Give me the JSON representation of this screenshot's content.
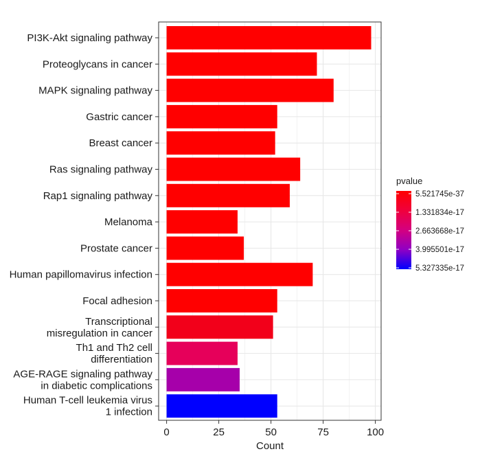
{
  "chart_data": {
    "type": "bar",
    "orientation": "horizontal",
    "xlabel": "Count",
    "xlim": [
      0,
      100
    ],
    "xticks": [
      "0",
      "25",
      "50",
      "75",
      "100"
    ],
    "grid": true,
    "legend": {
      "title": "pvalue",
      "position": "right",
      "labels": [
        "5.521745e-37",
        "1.331834e-17",
        "2.663668e-17",
        "3.995501e-17",
        "5.327335e-17"
      ],
      "color_low": "#ff0000",
      "color_high": "#0000ff"
    },
    "categories": [
      [
        "PI3K-Akt signaling pathway"
      ],
      [
        "Proteoglycans in cancer"
      ],
      [
        "MAPK signaling pathway"
      ],
      [
        "Gastric cancer"
      ],
      [
        "Breast cancer"
      ],
      [
        "Ras signaling pathway"
      ],
      [
        "Rap1 signaling pathway"
      ],
      [
        "Melanoma"
      ],
      [
        "Prostate cancer"
      ],
      [
        "Human papillomavirus infection"
      ],
      [
        "Focal adhesion"
      ],
      [
        "Transcriptional",
        "misregulation in cancer"
      ],
      [
        "Th1 and Th2 cell",
        "differentiation"
      ],
      [
        "AGE-RAGE signaling pathway",
        "in diabetic complications"
      ],
      [
        "Human T-cell leukemia virus",
        "1 infection"
      ]
    ],
    "values": [
      98,
      72,
      80,
      53,
      52,
      64,
      59,
      34,
      37,
      70,
      53,
      51,
      34,
      35,
      53
    ],
    "bar_colors": [
      "#ff0000",
      "#ff0000",
      "#ff0000",
      "#ff0000",
      "#ff0000",
      "#ff0000",
      "#ff0000",
      "#ff0000",
      "#ff0000",
      "#ff0000",
      "#ff0000",
      "#f2001a",
      "#e6005a",
      "#a600aa",
      "#0000ff"
    ]
  }
}
